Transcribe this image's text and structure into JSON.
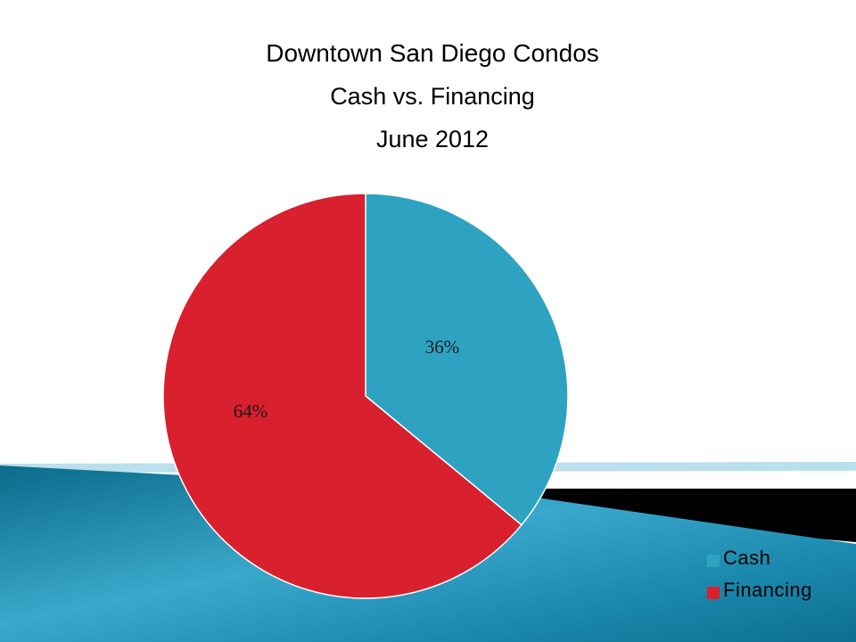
{
  "slide": {
    "title_lines": [
      "Downtown San Diego Condos",
      "Cash vs. Financing",
      "June 2012"
    ]
  },
  "colors": {
    "cash": "#2ea3c1",
    "financing": "#d8202e",
    "band_dark": "#0a6f8e",
    "band_light": "#5cc0dc",
    "band_black": "#000000"
  },
  "chart_data": {
    "type": "pie",
    "title": "Downtown San Diego Condos",
    "subtitle": "Cash vs. Financing — June 2012",
    "categories": [
      "Cash",
      "Financing"
    ],
    "values": [
      36,
      64
    ],
    "data_labels": [
      "36%",
      "64%"
    ],
    "legend": {
      "position": "bottom-right",
      "entries": [
        "Cash",
        "Financing"
      ]
    }
  }
}
